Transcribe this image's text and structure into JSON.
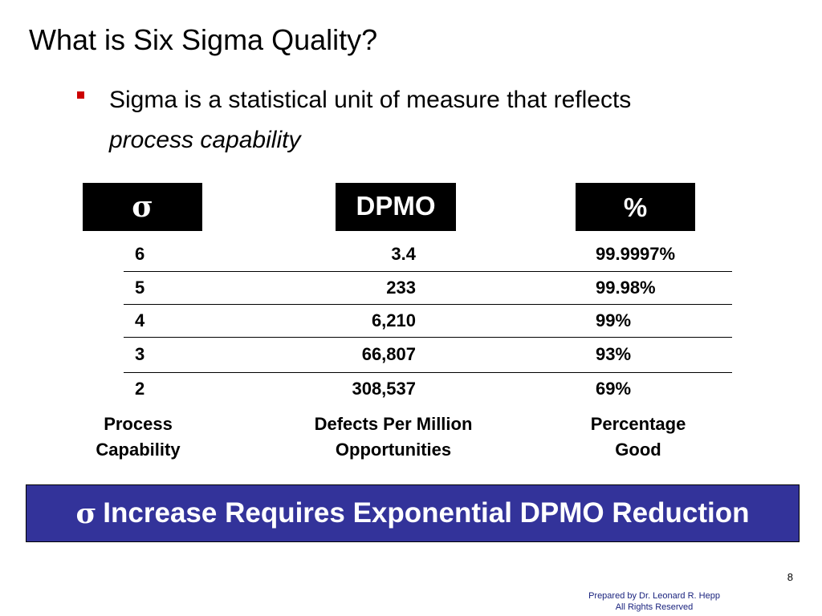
{
  "slide": {
    "title": "What is Six Sigma Quality?",
    "bullet_text": "Sigma is a statistical unit of measure that reflects",
    "bullet_text_italic": "process capability"
  },
  "table": {
    "headers": [
      "σ",
      "DPMO",
      "%"
    ],
    "rows": [
      [
        "6",
        "3.4",
        "99.9997%"
      ],
      [
        "5",
        "233",
        "99.98%"
      ],
      [
        "4",
        "6,210",
        "99%"
      ],
      [
        "3",
        "66,807",
        "93%"
      ],
      [
        "2",
        "308,537",
        "69%"
      ]
    ],
    "captions": [
      [
        "Process",
        "Capability"
      ],
      [
        "Defects Per Million",
        "Opportunities"
      ],
      [
        "Percentage",
        "Good"
      ]
    ]
  },
  "banner": {
    "symbol": "σ",
    "text": "Increase Requires Exponential DPMO Reduction"
  },
  "footer": {
    "page_number": "8",
    "line1": "Prepared by Dr. Leonard R. Hepp",
    "line2": "All Rights Reserved"
  },
  "colors": {
    "bullet": "#cc0000",
    "banner_bg": "#33339a",
    "header_bg": "#000000",
    "footer_text": "#1a237e"
  }
}
